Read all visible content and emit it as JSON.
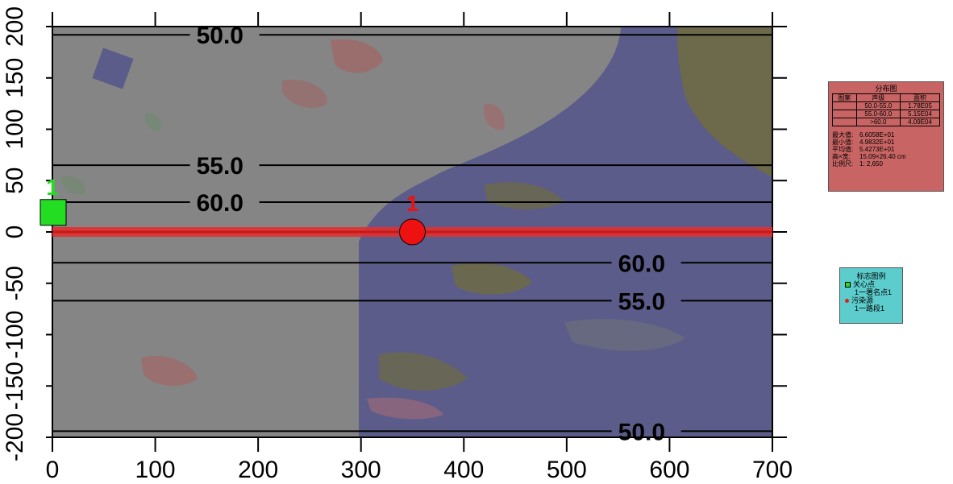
{
  "chart_data": {
    "type": "heatmap",
    "xlim": [
      0,
      700
    ],
    "ylim": [
      -200,
      200
    ],
    "x_ticks": [
      "0",
      "100",
      "200",
      "300",
      "400",
      "500",
      "600",
      "700"
    ],
    "y_ticks": [
      "200",
      "150",
      "100",
      "50",
      "0",
      "-50",
      "-100",
      "-150",
      "-200"
    ],
    "x_tick_values": [
      0,
      100,
      200,
      300,
      400,
      500,
      600,
      700
    ],
    "y_tick_values": [
      200,
      150,
      100,
      50,
      0,
      -50,
      -100,
      -150,
      -200
    ],
    "grid": false,
    "road": {
      "y": 0,
      "x_start": 0,
      "x_end": 700,
      "color": "#e03030"
    },
    "contours": [
      {
        "level": "50.0",
        "y": 192,
        "label_x": 140
      },
      {
        "level": "55.0",
        "y": 65,
        "label_x": 140
      },
      {
        "level": "60.0",
        "y": 29,
        "label_x": 140
      },
      {
        "level": "60.0",
        "y": -30,
        "label_x": 550
      },
      {
        "level": "55.0",
        "y": -67,
        "label_x": 550
      },
      {
        "level": "50.0",
        "y": -194,
        "label_x": 550
      }
    ],
    "markers": [
      {
        "kind": "sensitive-point",
        "label": "1",
        "x": 0,
        "y": 19,
        "color": "#22dd22"
      },
      {
        "kind": "pollution-source",
        "label": "1",
        "x": 350,
        "y": 0,
        "color": "#ee1111"
      }
    ]
  },
  "distribution_legend": {
    "title": "分布图",
    "headers": [
      "图案",
      "声级",
      "面积"
    ],
    "rows": [
      {
        "pattern": "",
        "level": "50.0-55.0",
        "area": "1.78E05"
      },
      {
        "pattern": "",
        "level": "55.0-60.0",
        "area": "5.15E04"
      },
      {
        "pattern": "",
        "level": ">60.0",
        "area": "4.09E04"
      }
    ],
    "stats": [
      {
        "label": "最大值:",
        "value": "6.6058E+01"
      },
      {
        "label": "最小值:",
        "value": "4.9832E+01"
      },
      {
        "label": "平均值:",
        "value": "5.4273E+01"
      },
      {
        "label": "高×宽:",
        "value": "15.09×26.40 cm"
      },
      {
        "label": "比例尺:",
        "value": "1: 2,650"
      }
    ],
    "background": "#c86464"
  },
  "symbol_legend": {
    "title": "标志图例",
    "items": [
      {
        "icon": "green-square-icon",
        "label": "关心点",
        "sub": "1一署名点1"
      },
      {
        "icon": "red-dot-icon",
        "label": "污染源",
        "sub": "1一路段1"
      }
    ],
    "background": "#5ccccc"
  }
}
